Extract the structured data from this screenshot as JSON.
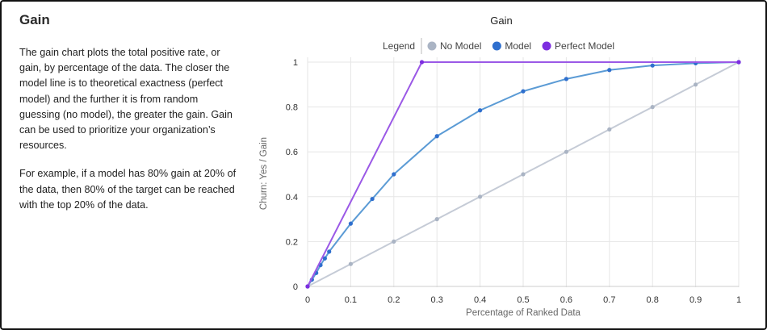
{
  "panel": {
    "title": "Gain",
    "paragraphs": [
      "The gain chart plots the total positive rate, or gain, by percentage of the data. The closer the model line is to theoretical exactness (perfect model) and the further it is from random guessing (no model), the greater the gain. Gain can be used to prioritize your organization’s resources.",
      "For example, if a model has 80% gain at 20% of the data, then 80% of the target can be reached with the top 20% of the data."
    ]
  },
  "chart_data": {
    "type": "line",
    "title": "Gain",
    "xlabel": "Percentage of Ranked Data",
    "ylabel": "Churn: Yes / Gain",
    "xlim": [
      0,
      1
    ],
    "ylim": [
      0,
      1
    ],
    "xticks": [
      "0",
      "0.1",
      "0.2",
      "0.3",
      "0.4",
      "0.5",
      "0.6",
      "0.7",
      "0.8",
      "0.9",
      "1"
    ],
    "yticks": [
      "0",
      "0.2",
      "0.4",
      "0.6",
      "0.8",
      "1"
    ],
    "grid": true,
    "legend": {
      "title": "Legend",
      "position": "top"
    },
    "series": [
      {
        "name": "No Model",
        "color": "#c5cbd6",
        "marker_color": "#aab4c4",
        "points": [
          [
            0,
            0
          ],
          [
            0.1,
            0.1
          ],
          [
            0.2,
            0.2
          ],
          [
            0.3,
            0.3
          ],
          [
            0.4,
            0.4
          ],
          [
            0.5,
            0.5
          ],
          [
            0.6,
            0.6
          ],
          [
            0.7,
            0.7
          ],
          [
            0.8,
            0.8
          ],
          [
            0.9,
            0.9
          ],
          [
            1,
            1
          ]
        ]
      },
      {
        "name": "Model",
        "color": "#5b9bd5",
        "marker_color": "#2f6fce",
        "points": [
          [
            0,
            0
          ],
          [
            0.01,
            0.03
          ],
          [
            0.02,
            0.06
          ],
          [
            0.03,
            0.095
          ],
          [
            0.04,
            0.125
          ],
          [
            0.05,
            0.155
          ],
          [
            0.1,
            0.28
          ],
          [
            0.15,
            0.39
          ],
          [
            0.2,
            0.5
          ],
          [
            0.3,
            0.67
          ],
          [
            0.4,
            0.785
          ],
          [
            0.5,
            0.87
          ],
          [
            0.6,
            0.925
          ],
          [
            0.7,
            0.965
          ],
          [
            0.8,
            0.985
          ],
          [
            0.9,
            0.995
          ],
          [
            1,
            1
          ]
        ]
      },
      {
        "name": "Perfect Model",
        "color": "#9b59e6",
        "marker_color": "#7d2ee0",
        "points": [
          [
            0,
            0
          ],
          [
            0.265,
            1
          ],
          [
            0.4,
            1
          ],
          [
            0.5,
            1
          ],
          [
            0.6,
            1
          ],
          [
            0.7,
            1
          ],
          [
            0.8,
            1
          ],
          [
            0.9,
            1
          ],
          [
            1,
            1
          ]
        ],
        "markers": [
          [
            0,
            0
          ],
          [
            0.265,
            1
          ],
          [
            1,
            1
          ]
        ]
      }
    ]
  }
}
